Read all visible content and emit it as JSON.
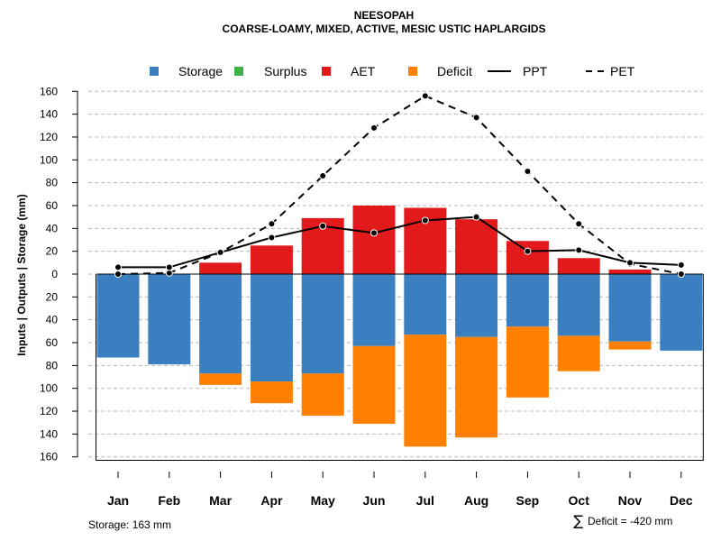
{
  "chart_data": {
    "type": "bar",
    "title": "NEESOPAH",
    "subtitle": "COARSE-LOAMY, MIXED, ACTIVE, MESIC USTIC HAPLARGIDS",
    "ylabel": "Inputs | Outputs | Storage    (mm)",
    "xlabel": "",
    "ylim": [
      -160,
      160
    ],
    "yticks": [
      160,
      140,
      120,
      100,
      80,
      60,
      40,
      20,
      0,
      20,
      40,
      60,
      80,
      100,
      120,
      140,
      160
    ],
    "categories": [
      "Jan",
      "Feb",
      "Mar",
      "Apr",
      "May",
      "Jun",
      "Jul",
      "Aug",
      "Sep",
      "Oct",
      "Nov",
      "Dec"
    ],
    "legend": [
      {
        "label": "Storage",
        "kind": "square",
        "color": "#3A7FBF"
      },
      {
        "label": "Surplus",
        "kind": "square",
        "color": "#3EB048"
      },
      {
        "label": "AET",
        "kind": "square",
        "color": "#E31A1C"
      },
      {
        "label": "Deficit",
        "kind": "square",
        "color": "#FF7F00"
      },
      {
        "label": "PPT",
        "kind": "solid-line",
        "color": "#000000"
      },
      {
        "label": "PET",
        "kind": "dashed-line",
        "color": "#000000"
      }
    ],
    "series": [
      {
        "name": "AET",
        "color": "#E31A1C",
        "values": [
          0,
          0,
          10,
          25,
          49,
          60,
          58,
          48,
          29,
          14,
          4,
          0
        ]
      },
      {
        "name": "Storage",
        "color": "#3A7FBF",
        "values": [
          73,
          79,
          87,
          94,
          87,
          63,
          53,
          55,
          46,
          54,
          59,
          67
        ]
      },
      {
        "name": "Deficit",
        "color": "#FF7F00",
        "values": [
          0,
          0,
          10,
          19,
          37,
          68,
          98,
          88,
          62,
          31,
          7,
          0
        ]
      },
      {
        "name": "Surplus",
        "color": "#3EB048",
        "values": [
          0,
          0,
          0,
          0,
          0,
          0,
          0,
          0,
          0,
          0,
          0,
          0
        ]
      },
      {
        "name": "PPT",
        "color": "#000000",
        "values": [
          6,
          6,
          19,
          32,
          42,
          36,
          47,
          50,
          20,
          21,
          10,
          8
        ]
      },
      {
        "name": "PET",
        "color": "#000000",
        "values": [
          0,
          1,
          19,
          44,
          86,
          128,
          156,
          137,
          90,
          44,
          9,
          0
        ]
      }
    ],
    "storage_note": "Storage: 163 mm",
    "deficit_symbol": "∑",
    "deficit_note": "Deficit = -420 mm"
  }
}
